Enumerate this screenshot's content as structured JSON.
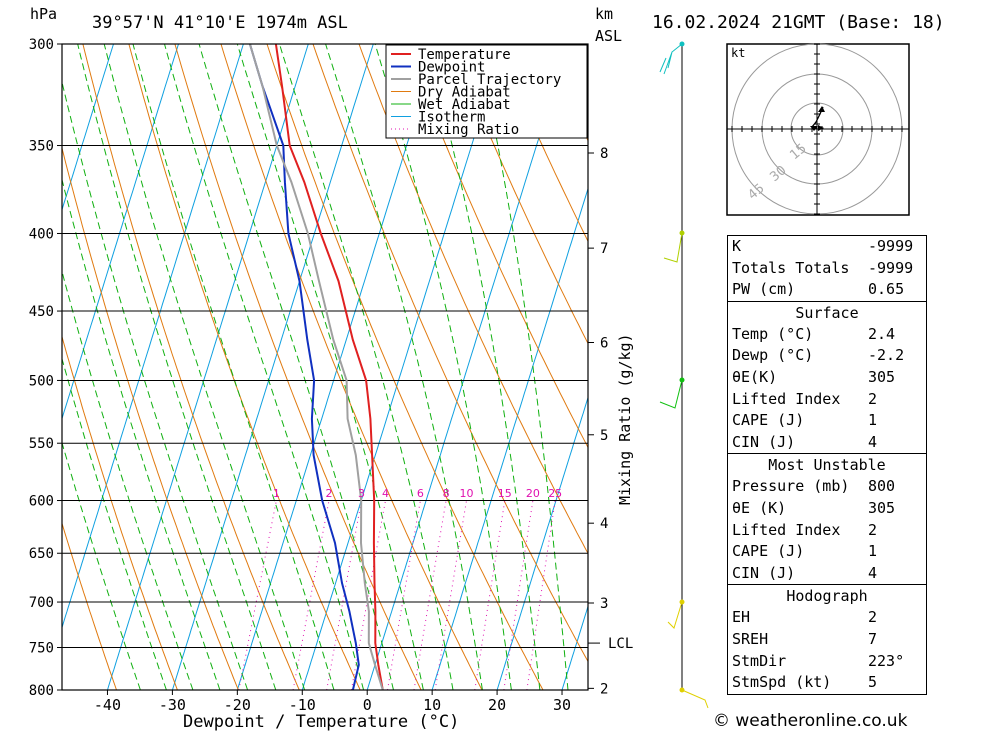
{
  "header": {
    "location": "39°57'N  41°10'E  1974m  ASL",
    "datetime": "16.02.2024  21GMT  (Base: 18)",
    "hpa_label": "hPa",
    "km_label": "km",
    "asl_label": "ASL"
  },
  "colors": {
    "temperature": "#e02020",
    "dewpoint": "#1030c0",
    "parcel": "#a0a0a0",
    "dry_adiabat": "#e07a10",
    "wet_adiabat": "#10b010",
    "isotherm": "#10a0e0",
    "mixing_ratio": "#e010b0"
  },
  "chart_data": {
    "type": "line",
    "title": "39°57'N  41°10'E  1974m  ASL",
    "xlabel": "Dewpoint / Temperature (°C)",
    "ylabel": "hPa",
    "y2label": "Mixing Ratio (g/kg)",
    "xlim": [
      -47,
      34
    ],
    "ylim": [
      800,
      300
    ],
    "x_ticks": [
      -40,
      -30,
      -20,
      -10,
      0,
      10,
      20,
      30
    ],
    "pressure_levels": [
      300,
      350,
      400,
      450,
      500,
      550,
      600,
      650,
      700,
      750,
      800
    ],
    "km_ticks": [
      {
        "km": "8",
        "p": 354
      },
      {
        "km": "7",
        "p": 409
      },
      {
        "km": "6",
        "p": 472
      },
      {
        "km": "5",
        "p": 543
      },
      {
        "km": "4",
        "p": 621
      },
      {
        "km": "3",
        "p": 701
      },
      {
        "km": "2",
        "p": 798
      }
    ],
    "lcl": {
      "label": "LCL",
      "p": 745
    },
    "mixing_ratio_labels": [
      "1",
      "2",
      "3",
      "4",
      "6",
      "8",
      "10",
      "15",
      "20",
      "25"
    ],
    "legend": [
      "Temperature",
      "Dewpoint",
      "Parcel Trajectory",
      "Dry Adiabat",
      "Wet Adiabat",
      "Isotherm",
      "Mixing Ratio"
    ],
    "legend_position": "top-center",
    "series": [
      {
        "name": "Temperature",
        "points": [
          [
            2.4,
            800
          ],
          [
            0.5,
            770
          ],
          [
            -1,
            745
          ],
          [
            -2.5,
            710
          ],
          [
            -4,
            680
          ],
          [
            -6,
            640
          ],
          [
            -8,
            600
          ],
          [
            -10.5,
            560
          ],
          [
            -12.5,
            530
          ],
          [
            -15,
            500
          ],
          [
            -19,
            470
          ],
          [
            -24,
            430
          ],
          [
            -29,
            400
          ],
          [
            -34,
            370
          ],
          [
            -38,
            350
          ],
          [
            -42,
            320
          ],
          [
            -45,
            300
          ]
        ]
      },
      {
        "name": "Dewpoint",
        "points": [
          [
            -2.2,
            800
          ],
          [
            -2.5,
            770
          ],
          [
            -4,
            745
          ],
          [
            -6.5,
            710
          ],
          [
            -9,
            680
          ],
          [
            -12,
            640
          ],
          [
            -16,
            600
          ],
          [
            -19.5,
            560
          ],
          [
            -21.5,
            530
          ],
          [
            -23,
            500
          ],
          [
            -26,
            470
          ],
          [
            -30,
            430
          ],
          [
            -34,
            400
          ],
          [
            -37,
            370
          ],
          [
            -39,
            350
          ],
          [
            -45,
            320
          ],
          [
            -49,
            300
          ]
        ]
      },
      {
        "name": "Parcel Trajectory",
        "points": [
          [
            2.4,
            800
          ],
          [
            0,
            770
          ],
          [
            -2,
            745
          ],
          [
            -3.5,
            710
          ],
          [
            -5.5,
            680
          ],
          [
            -8,
            640
          ],
          [
            -10,
            600
          ],
          [
            -13,
            560
          ],
          [
            -16,
            530
          ],
          [
            -18,
            500
          ],
          [
            -22,
            470
          ],
          [
            -27,
            430
          ],
          [
            -31,
            400
          ],
          [
            -36,
            370
          ],
          [
            -40,
            350
          ],
          [
            -45,
            320
          ],
          [
            -49,
            300
          ]
        ]
      }
    ]
  },
  "hodograph": {
    "unit": "kt",
    "ring_labels": [
      "15",
      "30",
      "45"
    ]
  },
  "indices": {
    "k_label": "K",
    "k_value": "-9999",
    "tt_label": "Totals Totals",
    "tt_value": "-9999",
    "pw_label": "PW (cm)",
    "pw_value": "0.65"
  },
  "surface": {
    "title": "Surface",
    "temp_label": "Temp (°C)",
    "temp_value": "2.4",
    "dewp_label": "Dewp (°C)",
    "dewp_value": "-2.2",
    "theta_label": "θE(K)",
    "theta_value": "305",
    "li_label": "Lifted Index",
    "li_value": "2",
    "cape_label": "CAPE (J)",
    "cape_value": "1",
    "cin_label": "CIN (J)",
    "cin_value": "4"
  },
  "most_unstable": {
    "title": "Most Unstable",
    "pressure_label": "Pressure (mb)",
    "pressure_value": "800",
    "theta_label": "θE (K)",
    "theta_value": "305",
    "li_label": "Lifted Index",
    "li_value": "2",
    "cape_label": "CAPE (J)",
    "cape_value": "1",
    "cin_label": "CIN (J)",
    "cin_value": "4"
  },
  "hodograph_stats": {
    "title": "Hodograph",
    "eh_label": "EH",
    "eh_value": "2",
    "sreh_label": "SREH",
    "sreh_value": "7",
    "stmdir_label": "StmDir",
    "stmdir_value": "223°",
    "stmspd_label": "StmSpd (kt)",
    "stmspd_value": "5"
  },
  "footer": {
    "copyright": "© weatheronline.co.uk"
  }
}
